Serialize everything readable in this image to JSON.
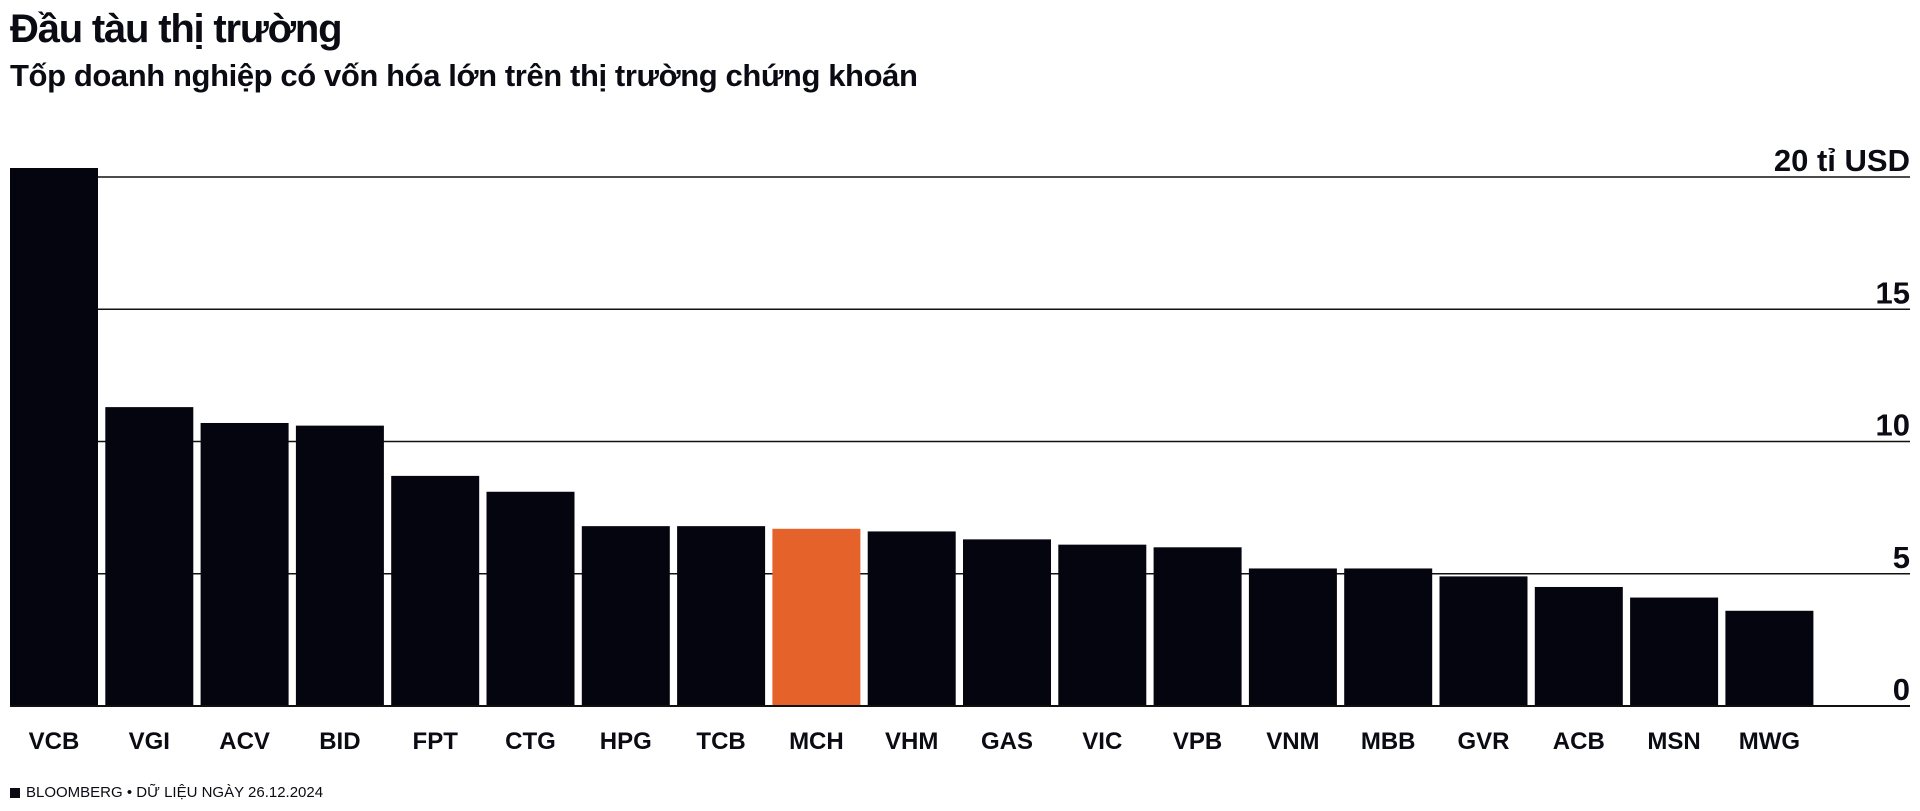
{
  "header": {
    "title": "Đầu tàu thị trường",
    "subtitle": "Tốp doanh nghiệp có vốn hóa lớn trên thị trường chứng khoán"
  },
  "source": {
    "text": "BLOOMBERG • DỮ LIỆU NGÀY 26.12.2024"
  },
  "colors": {
    "bar": "#05050f",
    "highlight": "#e5622b",
    "grid": "#111111",
    "text": "#0b0b14"
  },
  "chart_data": {
    "type": "bar",
    "title": "Đầu tàu thị trường",
    "subtitle": "Tốp doanh nghiệp có vốn hóa lớn trên thị trường chứng khoán",
    "categories": [
      "VCB",
      "VGI",
      "ACV",
      "BID",
      "FPT",
      "CTG",
      "HPG",
      "TCB",
      "MCH",
      "VHM",
      "GAS",
      "VIC",
      "VPB",
      "VNM",
      "MBB",
      "GVR",
      "ACB",
      "MSN",
      "MWG"
    ],
    "values": [
      20.4,
      11.3,
      10.7,
      10.6,
      8.7,
      8.1,
      6.8,
      6.8,
      6.7,
      6.6,
      6.3,
      6.1,
      6.0,
      5.2,
      5.2,
      4.9,
      4.5,
      4.1,
      3.6
    ],
    "highlight": "MCH",
    "ylim": [
      0,
      20
    ],
    "yticks": [
      0,
      5,
      10,
      15,
      20
    ],
    "ytick_labels": [
      "0",
      "5",
      "10",
      "15",
      "20 tỉ USD"
    ],
    "xlabel": "",
    "ylabel": "",
    "grid": true,
    "legend": "none"
  }
}
